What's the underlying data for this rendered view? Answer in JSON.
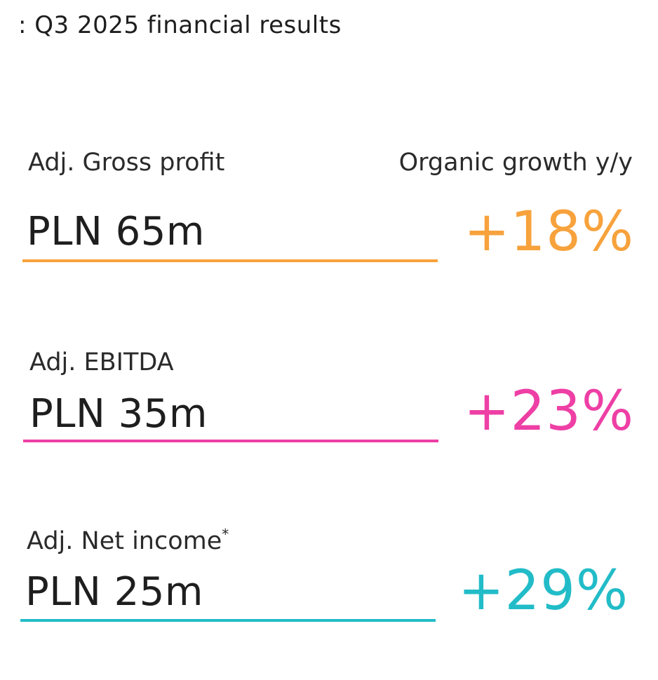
{
  "title": ": Q3 2025 financial results",
  "growth_header": "Organic growth y/y",
  "metrics": [
    {
      "label": "Adj. Gross profit",
      "footnote": "",
      "value": "PLN 65m",
      "growth": "+18%",
      "color": "#f7a23c"
    },
    {
      "label": "Adj. EBITDA",
      "footnote": "",
      "value": "PLN 35m",
      "growth": "+23%",
      "color": "#ee3fa5"
    },
    {
      "label": "Adj. Net income",
      "footnote": "*",
      "value": "PLN 25m",
      "growth": "+29%",
      "color": "#22bcc8"
    }
  ]
}
